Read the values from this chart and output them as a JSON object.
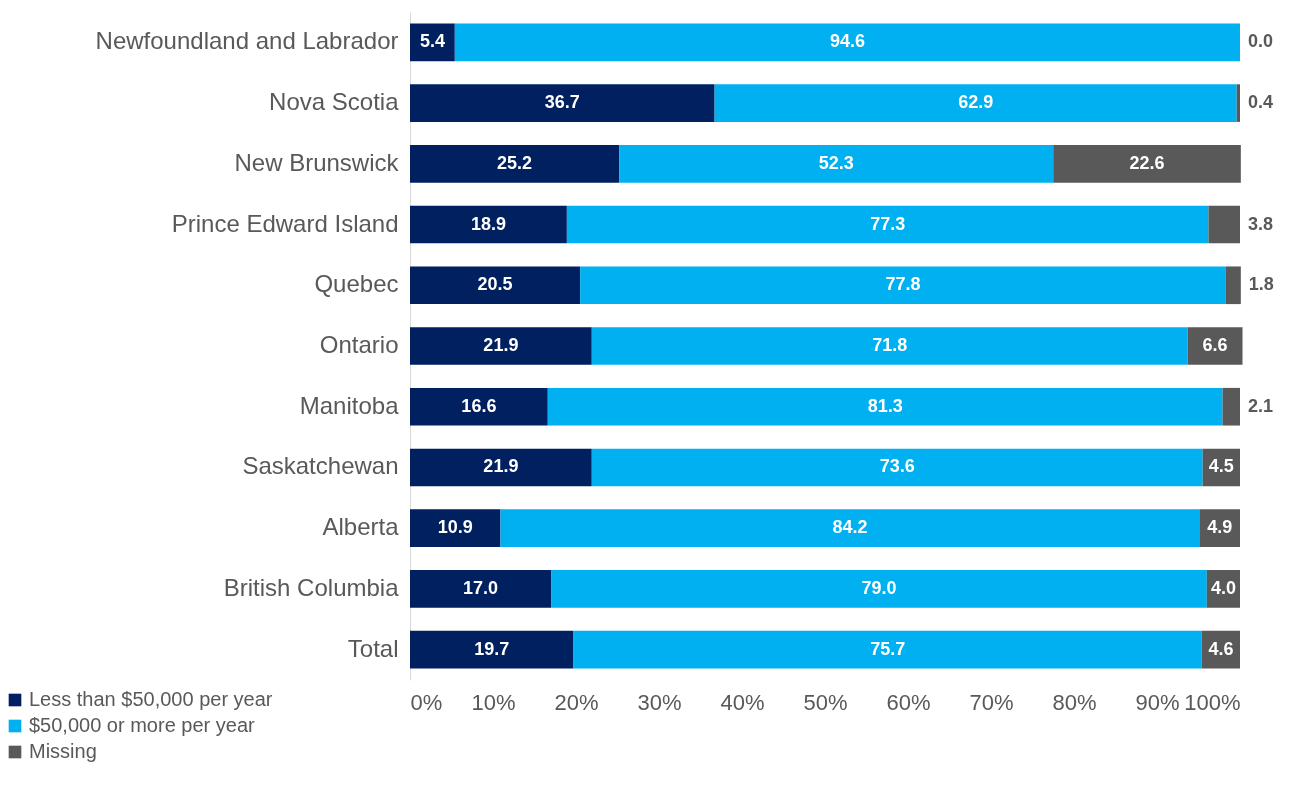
{
  "chart_data": {
    "type": "bar",
    "orientation": "horizontal",
    "stacked": true,
    "legend": "bottom left",
    "categories": [
      "Newfoundland and Labrador",
      "Nova Scotia",
      "New Brunswick",
      "Prince Edward Island",
      "Quebec",
      "Ontario",
      "Manitoba",
      "Saskatchewan",
      "Alberta",
      "British Columbia",
      "Total"
    ],
    "series": [
      {
        "name": "Less than $50,000 per year",
        "color": "#002060",
        "values": [
          5.4,
          36.7,
          25.2,
          18.9,
          20.5,
          21.9,
          16.6,
          21.9,
          10.9,
          17.0,
          19.7
        ],
        "value_labels": [
          "5.4",
          "36.7",
          "25.2",
          "18.9",
          "20.5",
          "21.9",
          "16.6",
          "21.9",
          "10.9",
          "17.0",
          "19.7"
        ]
      },
      {
        "name": "$50,000 or more per year",
        "color": "#00b0f0",
        "values": [
          94.6,
          62.9,
          52.3,
          77.3,
          77.8,
          71.8,
          81.3,
          73.6,
          84.2,
          79.0,
          75.7
        ],
        "value_labels": [
          "94.6",
          "62.9",
          "52.3",
          "77.3",
          "77.8",
          "71.8",
          "81.3",
          "73.6",
          "84.2",
          "79.0",
          "75.7"
        ]
      },
      {
        "name": "Missing",
        "color": "#595959",
        "values": [
          0.0,
          0.4,
          22.6,
          3.8,
          1.8,
          6.6,
          2.1,
          4.5,
          4.9,
          4.0,
          4.6
        ],
        "value_labels": [
          "0.0",
          "0.4",
          "22.6",
          "3.8",
          "1.8",
          "6.6",
          "2.1",
          "4.5",
          "4.9",
          "4.0",
          "4.6"
        ]
      }
    ],
    "xlim": [
      0,
      100
    ],
    "xticks": [
      {
        "value": 0,
        "label": "0%"
      },
      {
        "value": 10,
        "label": "10%"
      },
      {
        "value": 20,
        "label": "20%"
      },
      {
        "value": 30,
        "label": "30%"
      },
      {
        "value": 40,
        "label": "40%"
      },
      {
        "value": 50,
        "label": "50%"
      },
      {
        "value": 60,
        "label": "60%"
      },
      {
        "value": 70,
        "label": "70%"
      },
      {
        "value": 80,
        "label": "80%"
      },
      {
        "value": 90,
        "label": "90%"
      },
      {
        "value": 100,
        "label": "100%"
      }
    ]
  }
}
